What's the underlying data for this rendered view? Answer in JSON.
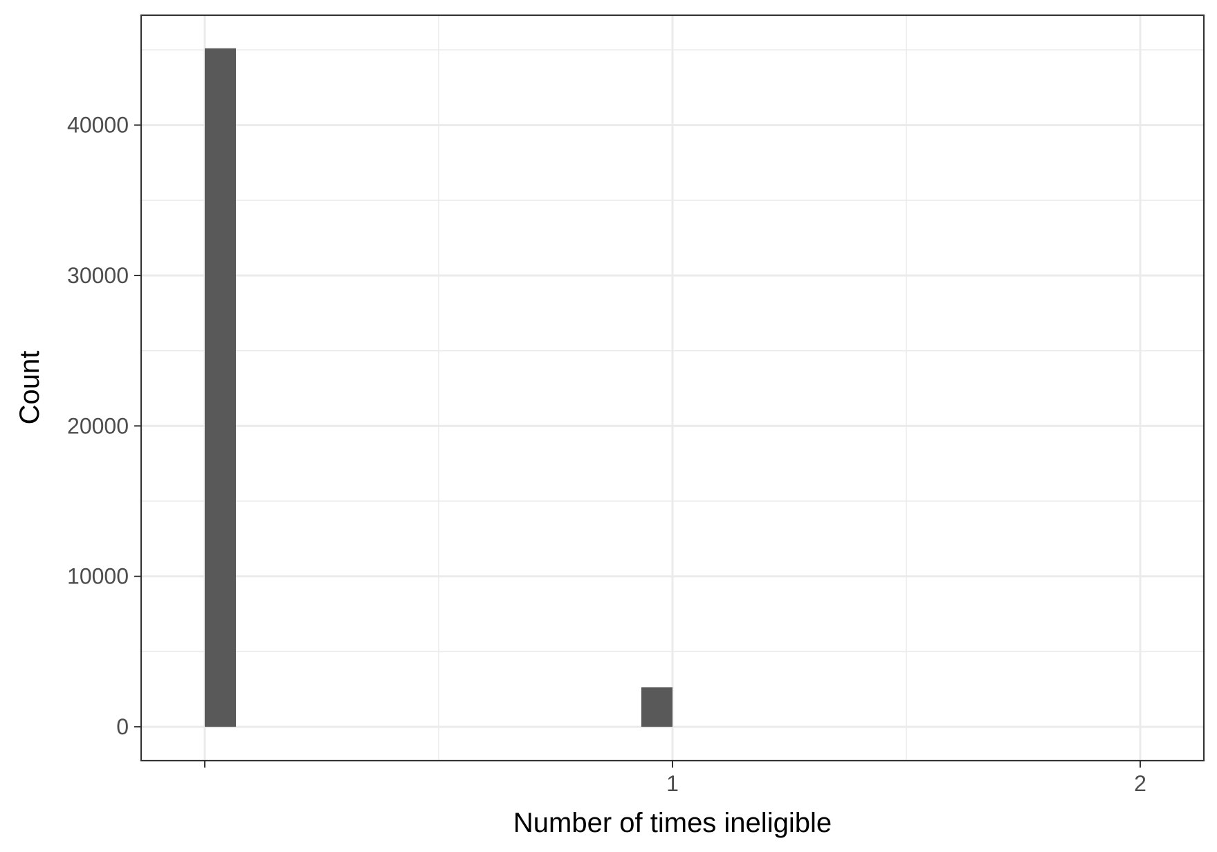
{
  "chart_data": {
    "type": "bar",
    "xlabel": "Number of times ineligible",
    "ylabel": "Count",
    "x_ticks": [
      1,
      2
    ],
    "y_ticks": [
      0,
      10000,
      20000,
      30000,
      40000
    ],
    "xlim": [
      -0.136,
      2.136
    ],
    "ylim": [
      -2250,
      47300
    ],
    "grid": true,
    "colors": {
      "bar": "#595959",
      "grid": "#ebebeb",
      "border": "#333333"
    },
    "bars": [
      {
        "x_start": 0.0,
        "x_end": 0.0667,
        "count": 45100
      },
      {
        "x_start": 0.9333,
        "x_end": 1.0,
        "count": 2620
      }
    ]
  }
}
